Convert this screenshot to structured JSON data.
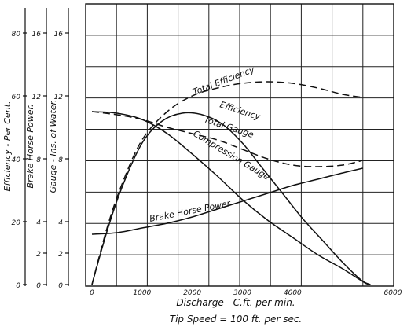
{
  "chart_data": {
    "type": "line",
    "xlabel": "Discharge - C.ft. per min.",
    "caption": "Tip Speed = 100 ft. per sec.",
    "x_ticks": [
      "0",
      "1000",
      "2000",
      "3000",
      "4000",
      "6000"
    ],
    "xlim": [
      0,
      6000
    ],
    "y_axes": [
      {
        "label": "Efficiency - Per Cent.",
        "ticks": [
          "0",
          "20",
          "40",
          "60",
          "80"
        ],
        "lim": [
          0,
          80
        ]
      },
      {
        "label": "Brake Horse Power.",
        "ticks": [
          "0",
          "2",
          "4",
          "8",
          "12",
          "16"
        ],
        "lim": [
          0,
          16
        ]
      },
      {
        "label": "Gauge - Ins. of Water.",
        "ticks": [
          "0",
          "2",
          "4",
          "8",
          "12",
          "16"
        ],
        "lim": [
          0,
          16
        ]
      }
    ],
    "grid": true,
    "series": [
      {
        "name": "Total Efficiency",
        "axis": "efficiency",
        "style": "dashed",
        "x": [
          0,
          300,
          600,
          1000,
          1500,
          2000,
          2500,
          3000,
          3500,
          4000,
          4500,
          5000,
          5400
        ],
        "y": [
          0,
          18,
          32,
          46,
          55,
          60,
          62.5,
          64,
          64.5,
          64,
          62.5,
          60.5,
          59.5
        ]
      },
      {
        "name": "Efficiency",
        "axis": "efficiency",
        "style": "solid",
        "x": [
          0,
          300,
          600,
          1000,
          1400,
          1800,
          2200,
          2600,
          3000,
          3400,
          3800,
          4200,
          4600,
          5000,
          5400,
          5550
        ],
        "y": [
          0,
          17,
          31,
          45,
          52,
          54.5,
          54,
          51,
          45,
          37,
          29,
          21,
          14,
          7,
          1,
          0
        ]
      },
      {
        "name": "Total Gauge",
        "axis": "gauge",
        "style": "dashed",
        "x": [
          0,
          500,
          1000,
          1500,
          2000,
          2500,
          3000,
          3500,
          4000,
          4500,
          5000,
          5400
        ],
        "y": [
          11,
          10.8,
          10.5,
          10,
          9.6,
          9.2,
          8.6,
          8,
          7.6,
          7.5,
          7.6,
          7.9
        ]
      },
      {
        "name": "Compression Gauge",
        "axis": "gauge",
        "style": "solid",
        "x": [
          0,
          500,
          1000,
          1500,
          2000,
          2500,
          3000,
          3500,
          4000,
          4500,
          5000,
          5400,
          5550
        ],
        "y": [
          11,
          10.9,
          10.5,
          9.6,
          8.3,
          6.9,
          5.4,
          4.1,
          3,
          1.9,
          1,
          0.2,
          0
        ]
      },
      {
        "name": "Brake Horse Power",
        "axis": "bhp",
        "style": "solid",
        "x": [
          0,
          500,
          1000,
          1500,
          2000,
          2500,
          3000,
          3500,
          4000,
          4500,
          5000,
          5400
        ],
        "y": [
          3.2,
          3.3,
          3.6,
          3.9,
          4.3,
          4.8,
          5.3,
          5.8,
          6.3,
          6.7,
          7.1,
          7.4
        ]
      }
    ]
  }
}
